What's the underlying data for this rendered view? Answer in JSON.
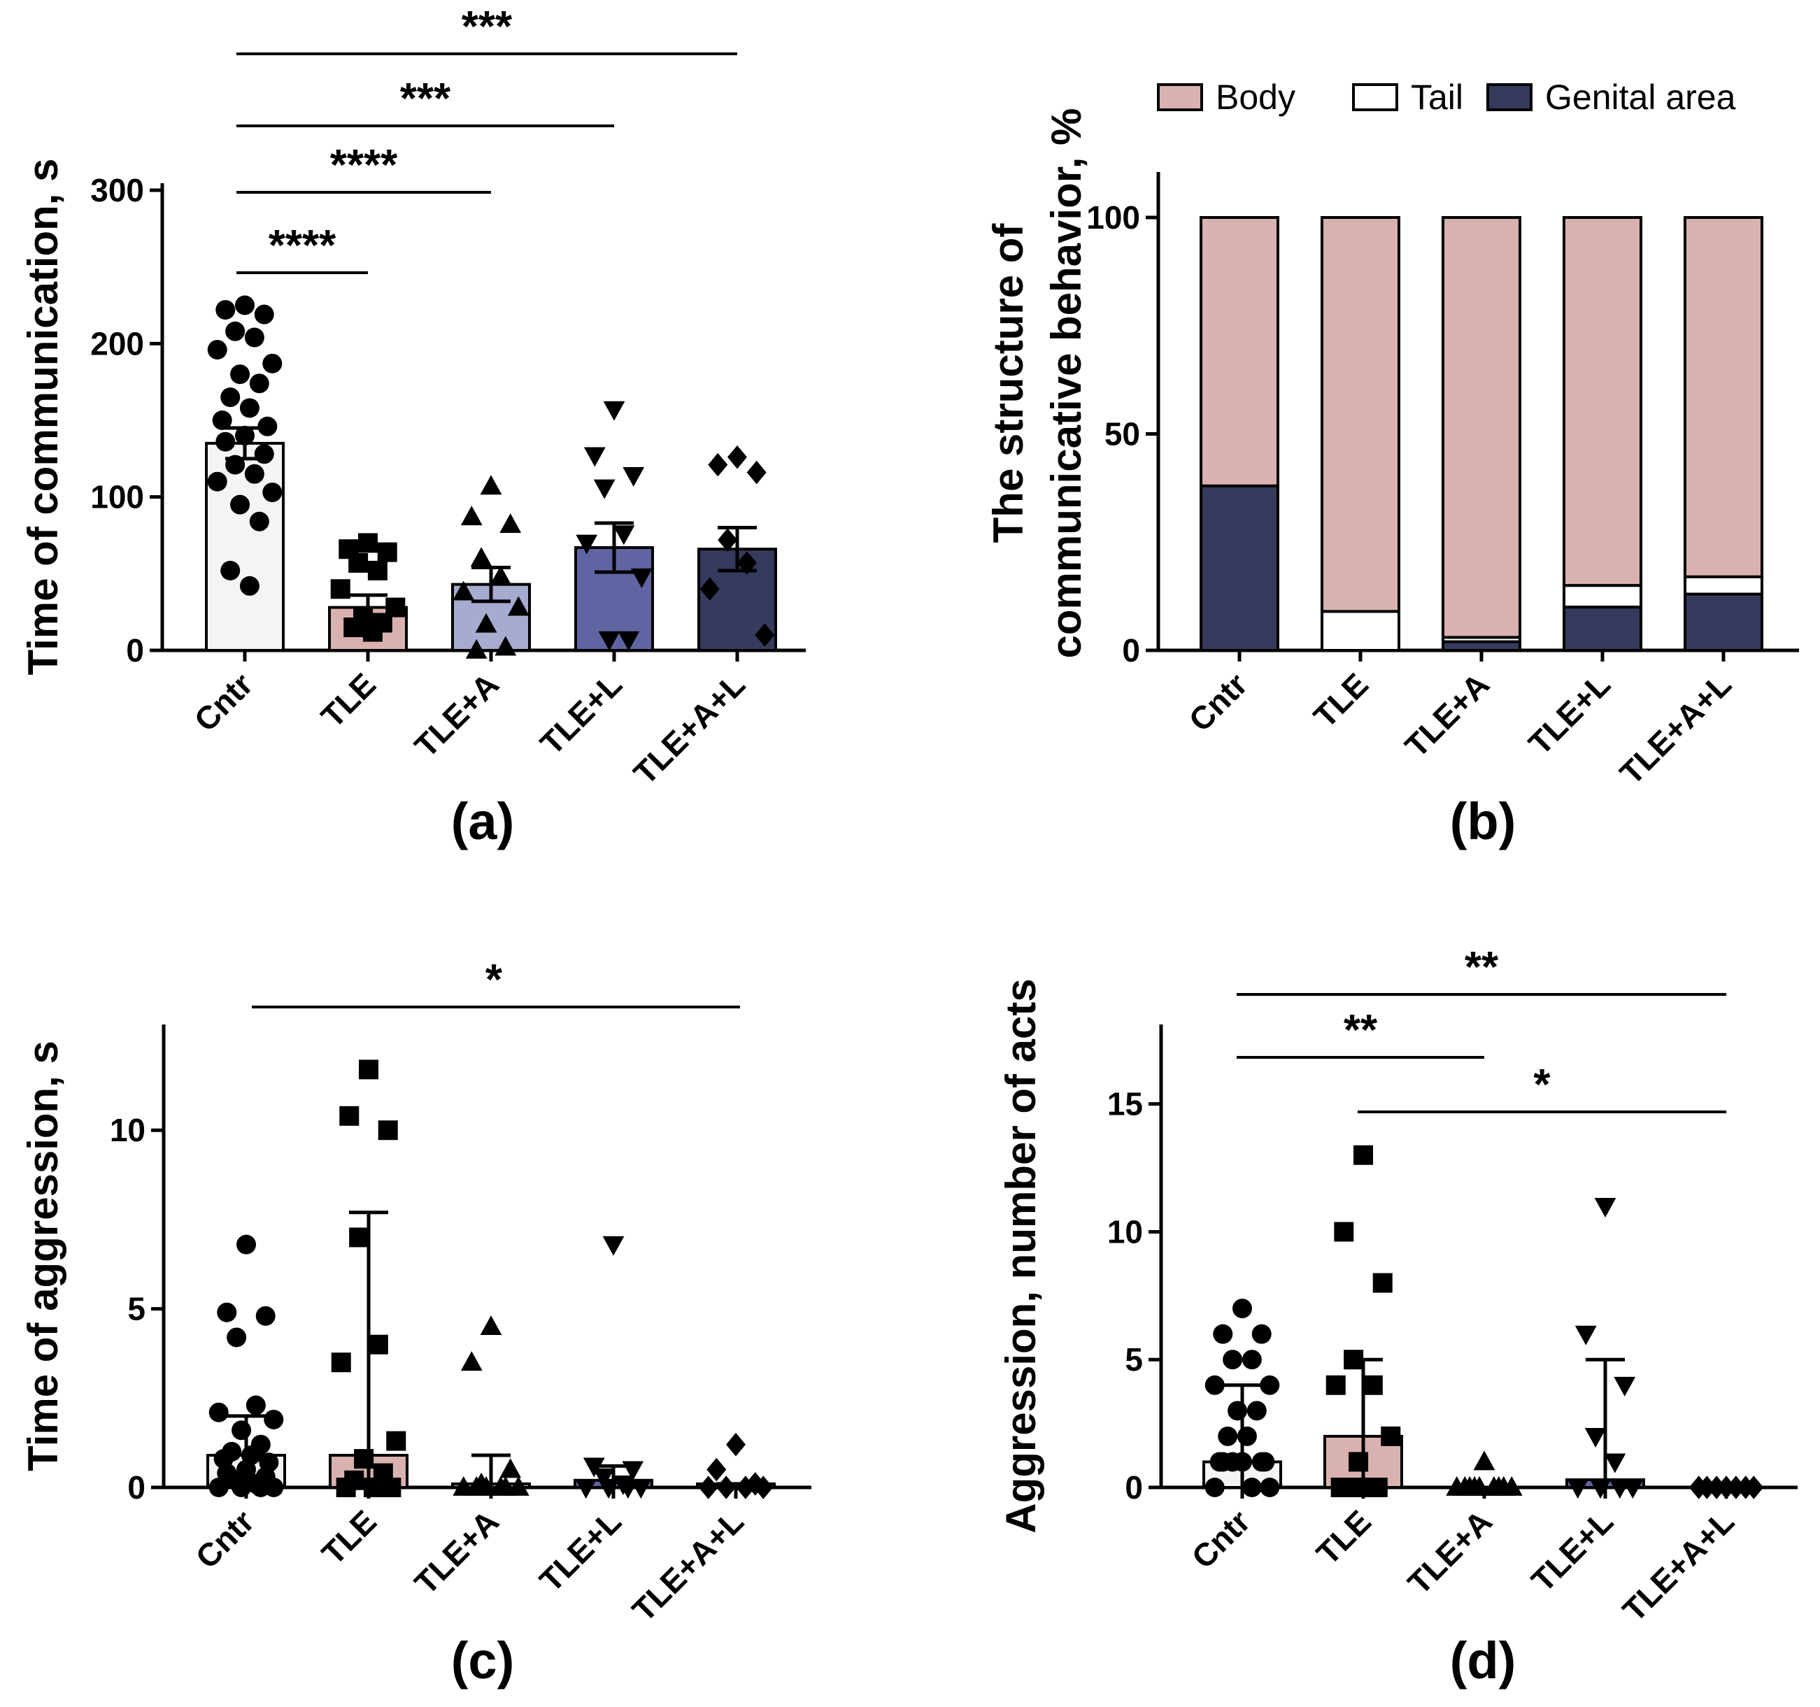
{
  "chart_data": [
    {
      "panel": "(a)",
      "type": "bar",
      "title": "",
      "xlabel": "",
      "ylabel": "Time of communication, s",
      "ylim": [
        0,
        300
      ],
      "yticks": [
        "0",
        "100",
        "200",
        "300"
      ],
      "categories": [
        "Cntr",
        "TLE",
        "TLE+A",
        "TLE+L",
        "TLE+A+L"
      ],
      "values": [
        135,
        28,
        43,
        67,
        66
      ],
      "sem": [
        10,
        8,
        11,
        16,
        14
      ],
      "bar_colors": [
        "#f4f4f4",
        "#d9b2b0",
        "#a7abd0",
        "#5f65a3",
        "#363a5c"
      ],
      "markers": [
        "circle",
        "square",
        "triangle-up",
        "triangle-down",
        "diamond"
      ],
      "points": [
        [
          225,
          222,
          219,
          208,
          204,
          196,
          187,
          180,
          174,
          165,
          158,
          150,
          146,
          140,
          136,
          128,
          121,
          115,
          110,
          103,
          95,
          84,
          52,
          42
        ],
        [
          70,
          66,
          64,
          57,
          52,
          40,
          28,
          22,
          18,
          15,
          12
        ],
        [
          107,
          87,
          82,
          60,
          48,
          38,
          28,
          17,
          2,
          0
        ],
        [
          157,
          127,
          114,
          106,
          76,
          70,
          48,
          7,
          7
        ],
        [
          126,
          121,
          116,
          72,
          57,
          40,
          10
        ]
      ],
      "significance": [
        {
          "from": "Cntr",
          "to": "TLE+A+L",
          "label": "***"
        },
        {
          "from": "Cntr",
          "to": "TLE+L",
          "label": "***"
        },
        {
          "from": "Cntr",
          "to": "TLE+A",
          "label": "****"
        },
        {
          "from": "Cntr",
          "to": "TLE",
          "label": "****"
        }
      ]
    },
    {
      "panel": "(b)",
      "type": "bar",
      "stacked": true,
      "title": "",
      "xlabel": "",
      "ylabel": [
        "The structure of",
        "communicative behavior, %"
      ],
      "ylim": [
        0,
        100
      ],
      "yticks": [
        "0",
        "50",
        "100"
      ],
      "categories": [
        "Cntr",
        "TLE",
        "TLE+A",
        "TLE+L",
        "TLE+A+L"
      ],
      "series": [
        {
          "name": "Genital area",
          "color": "#363a5c",
          "values": [
            38,
            0,
            2,
            10,
            13
          ]
        },
        {
          "name": "Tail",
          "color": "#ffffff",
          "values": [
            0,
            9,
            1,
            5,
            4
          ]
        },
        {
          "name": "Body",
          "color": "#d9b2b0",
          "values": [
            62,
            91,
            97,
            85,
            83
          ]
        }
      ],
      "legend": [
        "Body",
        "Tail",
        "Genital area"
      ],
      "legend_position": "top"
    },
    {
      "panel": "(c)",
      "type": "bar",
      "title": "",
      "xlabel": "",
      "ylabel": "Time of aggression, s",
      "ylim": [
        0,
        13
      ],
      "yticks": [
        "0",
        "5",
        "10"
      ],
      "categories": [
        "Cntr",
        "TLE",
        "TLE+A",
        "TLE+L",
        "TLE+A+L"
      ],
      "values": [
        0.9,
        0.9,
        0.1,
        0.2,
        0.1
      ],
      "err_low": [
        0,
        0,
        0,
        0,
        0
      ],
      "err_high": [
        2.0,
        7.7,
        0.9,
        0.6,
        0.1
      ],
      "bar_colors": [
        "#f4f4f4",
        "#d9b2b0",
        "#a7abd0",
        "#5f65a3",
        "#363a5c"
      ],
      "markers": [
        "circle",
        "square",
        "triangle-up",
        "triangle-down",
        "diamond"
      ],
      "points": [
        [
          6.8,
          4.9,
          4.8,
          4.2,
          2.3,
          2.1,
          1.9,
          1.6,
          1.2,
          1.0,
          0.9,
          0.8,
          0.7,
          0.5,
          0.4,
          0.3,
          0.2,
          0.1,
          0,
          0,
          0,
          0
        ],
        [
          11.7,
          10.4,
          10.0,
          7.0,
          4.0,
          3.5,
          1.3,
          0.8,
          0.4,
          0.2,
          0,
          0,
          0
        ],
        [
          4.5,
          3.5,
          0.5,
          0.1,
          0,
          0,
          0,
          0,
          0,
          0
        ],
        [
          6.8,
          0.6,
          0.5,
          0.3,
          0.1,
          0,
          0,
          0,
          0
        ],
        [
          1.2,
          0.5,
          0.1,
          0,
          0,
          0,
          0
        ]
      ],
      "significance": [
        {
          "from": "Cntr",
          "to": "TLE+A+L",
          "label": "*"
        }
      ]
    },
    {
      "panel": "(d)",
      "type": "bar",
      "title": "",
      "xlabel": "",
      "ylabel": "Aggression, number of acts",
      "ylim": [
        0,
        18
      ],
      "yticks": [
        "0",
        "5",
        "10",
        "15"
      ],
      "categories": [
        "Cntr",
        "TLE",
        "TLE+A",
        "TLE+L",
        "TLE+A+L"
      ],
      "values": [
        1,
        2,
        0,
        0.3,
        0
      ],
      "err_low": [
        0,
        0,
        0,
        0,
        0
      ],
      "err_high": [
        4,
        5,
        0,
        5,
        0
      ],
      "bar_colors": [
        "#f4f4f4",
        "#d9b2b0",
        "#a7abd0",
        "#5f65a3",
        "#363a5c"
      ],
      "markers": [
        "circle",
        "square",
        "triangle-up",
        "triangle-down",
        "diamond"
      ],
      "points": [
        [
          7,
          6,
          6,
          5,
          5,
          4,
          4,
          3,
          3,
          2,
          2,
          1,
          1,
          1,
          1,
          1,
          1,
          0,
          0,
          0
        ],
        [
          13,
          10,
          8,
          5,
          4,
          4,
          2,
          1,
          0,
          0,
          0,
          0
        ],
        [
          1,
          0,
          0,
          0,
          0,
          0,
          0,
          0,
          0,
          0
        ],
        [
          11,
          6,
          4,
          2,
          1,
          0,
          0,
          0,
          0
        ],
        [
          0,
          0,
          0,
          0,
          0,
          0,
          0
        ]
      ],
      "significance": [
        {
          "from": "Cntr",
          "to": "TLE+A+L",
          "label": "**"
        },
        {
          "from": "Cntr",
          "to": "TLE+A",
          "label": "**"
        },
        {
          "from": "TLE",
          "to": "TLE+A+L",
          "label": "*"
        }
      ]
    }
  ]
}
